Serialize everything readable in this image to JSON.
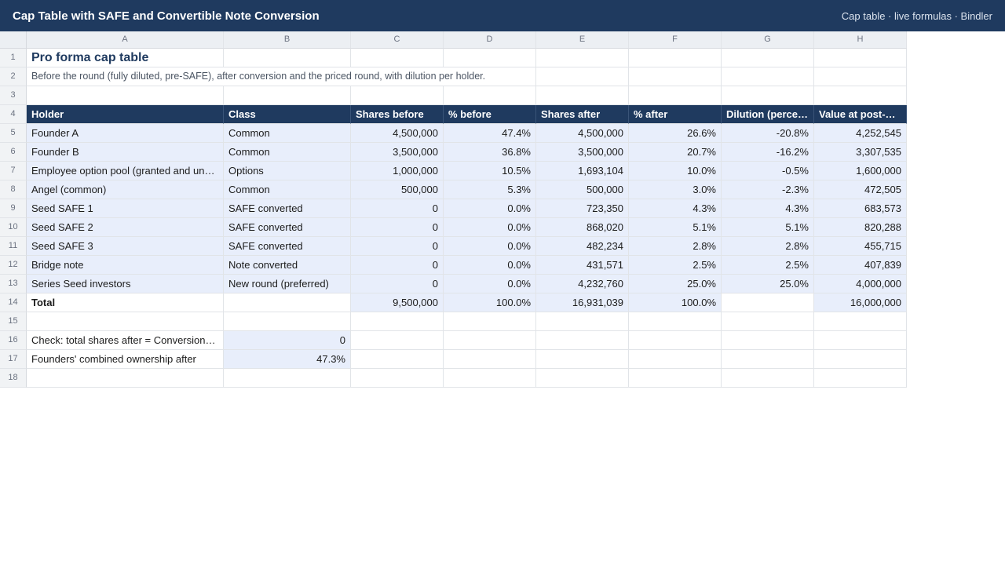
{
  "app": {
    "title": "Cap Table with SAFE and Convertible Note Conversion",
    "meta": "Cap table · live formulas · Bindler"
  },
  "columns": [
    "A",
    "B",
    "C",
    "D",
    "E",
    "F",
    "G",
    "H"
  ],
  "row_numbers": [
    "1",
    "2",
    "3",
    "4",
    "5",
    "6",
    "7",
    "8",
    "9",
    "10",
    "11",
    "12",
    "13",
    "14",
    "15",
    "16",
    "17",
    "18"
  ],
  "sheet": {
    "title": "Pro forma cap table",
    "subtitle": "Before the round (fully diluted, pre-SAFE), after conversion and the priced round, with dilution per holder.",
    "headers": [
      "Holder",
      "Class",
      "Shares before",
      "% before",
      "Shares after",
      "% after",
      "Dilution (percentage points)",
      "Value at post-money"
    ],
    "rows": [
      [
        "Founder A",
        "Common",
        "4,500,000",
        "47.4%",
        "4,500,000",
        "26.6%",
        "-20.8%",
        "4,252,545"
      ],
      [
        "Founder B",
        "Common",
        "3,500,000",
        "36.8%",
        "3,500,000",
        "20.7%",
        "-16.2%",
        "3,307,535"
      ],
      [
        "Employee option pool (granted and unallocated)",
        "Options",
        "1,000,000",
        "10.5%",
        "1,693,104",
        "10.0%",
        "-0.5%",
        "1,600,000"
      ],
      [
        "Angel (common)",
        "Common",
        "500,000",
        "5.3%",
        "500,000",
        "3.0%",
        "-2.3%",
        "472,505"
      ],
      [
        "Seed SAFE 1",
        "SAFE converted",
        "0",
        "0.0%",
        "723,350",
        "4.3%",
        "4.3%",
        "683,573"
      ],
      [
        "Seed SAFE 2",
        "SAFE converted",
        "0",
        "0.0%",
        "868,020",
        "5.1%",
        "5.1%",
        "820,288"
      ],
      [
        "Seed SAFE 3",
        "SAFE converted",
        "0",
        "0.0%",
        "482,234",
        "2.8%",
        "2.8%",
        "455,715"
      ],
      [
        "Bridge note",
        "Note converted",
        "0",
        "0.0%",
        "431,571",
        "2.5%",
        "2.5%",
        "407,839"
      ],
      [
        "Series Seed investors",
        "New round (preferred)",
        "0",
        "0.0%",
        "4,232,760",
        "25.0%",
        "25.0%",
        "4,000,000"
      ]
    ],
    "total": {
      "label": "Total",
      "shares_before": "9,500,000",
      "pct_before": "100.0%",
      "shares_after": "16,931,039",
      "pct_after": "100.0%",
      "value_post": "16,000,000"
    },
    "check": {
      "label": "Check: total shares after = Conversion pool + existing",
      "value": "0"
    },
    "founders": {
      "label": "Founders' combined ownership after",
      "value": "47.3%"
    }
  }
}
